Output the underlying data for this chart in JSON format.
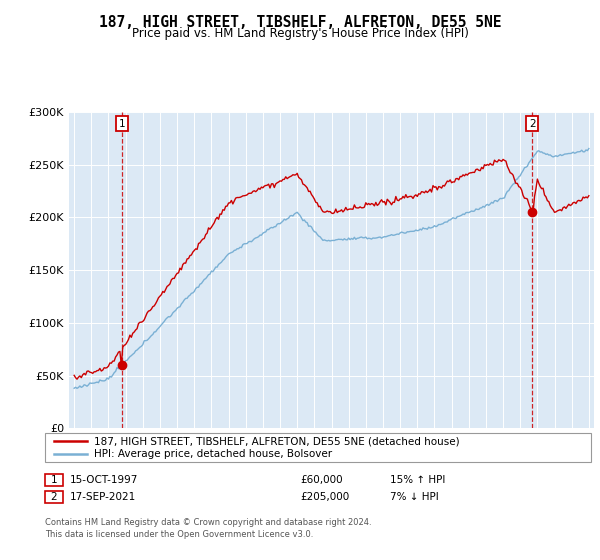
{
  "title": "187, HIGH STREET, TIBSHELF, ALFRETON, DE55 5NE",
  "subtitle": "Price paid vs. HM Land Registry's House Price Index (HPI)",
  "bg_color": "#dce9f5",
  "line1_color": "#cc0000",
  "line2_color": "#7ab0d4",
  "sale1_year": 1997.79,
  "sale1_price": 60000,
  "sale2_year": 2021.71,
  "sale2_price": 205000,
  "legend_line1": "187, HIGH STREET, TIBSHELF, ALFRETON, DE55 5NE (detached house)",
  "legend_line2": "HPI: Average price, detached house, Bolsover",
  "note1_date": "15-OCT-1997",
  "note1_price": "£60,000",
  "note1_hpi": "15% ↑ HPI",
  "note2_date": "17-SEP-2021",
  "note2_price": "£205,000",
  "note2_hpi": "7% ↓ HPI",
  "footer": "Contains HM Land Registry data © Crown copyright and database right 2024.\nThis data is licensed under the Open Government Licence v3.0.",
  "ylim": [
    0,
    300000
  ],
  "xlim_start": 1994.7,
  "xlim_end": 2025.3
}
